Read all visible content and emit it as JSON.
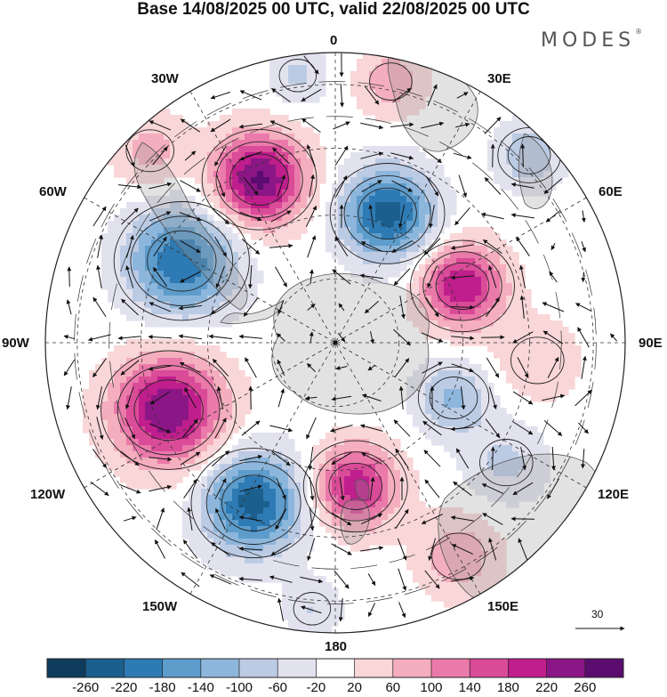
{
  "title": "Base 14/08/2025 00 UTC, valid 22/08/2025 00 UTC",
  "brand": "MODES",
  "brand_mark": "®",
  "longitude_labels": {
    "n0": "0",
    "w30": "30W",
    "e30": "30E",
    "w60": "60W",
    "e60": "60E",
    "w90": "90W",
    "e90": "90E",
    "w120": "120W",
    "e120": "120E",
    "w150": "150W",
    "e150": "150E",
    "s180": "180"
  },
  "reference_vector": "30",
  "colorbar": {
    "colors": [
      "#0f3b5c",
      "#1b5f8e",
      "#2e7ab4",
      "#5d9ccb",
      "#8db6dc",
      "#bccbe4",
      "#e2e2ef",
      "#ffffff",
      "#f9d6d7",
      "#f4aebd",
      "#ea7aaa",
      "#da4b98",
      "#bf1e8c",
      "#8b1686",
      "#5a0d6f"
    ],
    "labels": [
      "-260",
      "-220",
      "-180",
      "-140",
      "-100",
      "-60",
      "-20",
      "20",
      "60",
      "100",
      "140",
      "180",
      "220",
      "260"
    ]
  },
  "anomaly_centres": [
    {
      "lon": -25,
      "colat": 0.62,
      "value": 270,
      "spread": 0.11
    },
    {
      "lon": 22,
      "colat": 0.48,
      "value": -240,
      "spread": 0.11
    },
    {
      "lon": 66,
      "colat": 0.48,
      "value": 220,
      "spread": 0.1
    },
    {
      "lon": -62,
      "colat": 0.6,
      "value": -220,
      "spread": 0.13
    },
    {
      "lon": -112,
      "colat": 0.62,
      "value": 260,
      "spread": 0.13
    },
    {
      "lon": -153,
      "colat": 0.62,
      "value": -240,
      "spread": 0.12
    },
    {
      "lon": 172,
      "colat": 0.5,
      "value": 210,
      "spread": 0.1
    },
    {
      "lon": 46,
      "colat": 0.93,
      "value": -100,
      "spread": 0.08
    },
    {
      "lon": 115,
      "colat": 0.45,
      "value": -110,
      "spread": 0.09
    },
    {
      "lon": 125,
      "colat": 0.72,
      "value": -70,
      "spread": 0.1
    },
    {
      "lon": 150,
      "colat": 0.85,
      "value": 90,
      "spread": 0.1
    },
    {
      "lon": -8,
      "colat": 0.93,
      "value": -70,
      "spread": 0.07
    },
    {
      "lon": 12,
      "colat": 0.92,
      "value": 90,
      "spread": 0.08
    },
    {
      "lon": -44,
      "colat": 0.92,
      "value": 80,
      "spread": 0.09
    },
    {
      "lon": 95,
      "colat": 0.7,
      "value": 60,
      "spread": 0.1
    },
    {
      "lon": -175,
      "colat": 0.92,
      "value": -60,
      "spread": 0.07
    }
  ]
}
